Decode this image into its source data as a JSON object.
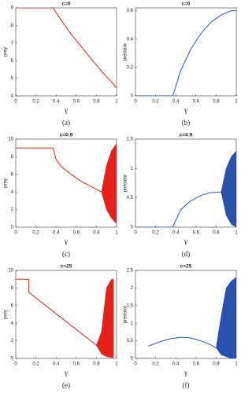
{
  "chart_data": [
    {
      "type": "line",
      "title": "c=0",
      "xlabel": "γ",
      "ylabel": "prey",
      "caption": "(a)",
      "xlim": [
        0,
        1
      ],
      "xticks": [
        0,
        0.2,
        0.4,
        0.6,
        0.8,
        1
      ],
      "ylim": [
        4,
        9
      ],
      "yticks": [
        4,
        5,
        6,
        7,
        8,
        9
      ],
      "series": [
        {
          "color": "#d8261e",
          "x": [
            0,
            0.37,
            0.45,
            0.55,
            0.65,
            0.75,
            0.85,
            0.95,
            1
          ],
          "values": [
            9,
            9,
            8.3,
            7.5,
            6.8,
            6.1,
            5.4,
            4.8,
            4.45
          ]
        }
      ]
    },
    {
      "type": "line",
      "title": "c=0",
      "xlabel": "γ",
      "ylabel": "predator",
      "caption": "(b)",
      "xlim": [
        0,
        1
      ],
      "xticks": [
        0,
        0.2,
        0.4,
        0.6,
        0.8,
        1
      ],
      "ylim": [
        0,
        0.62
      ],
      "yticks": [
        0,
        0.2,
        0.4,
        0.6
      ],
      "series": [
        {
          "color": "#2d55b5",
          "x": [
            0,
            0.37,
            0.45,
            0.55,
            0.65,
            0.75,
            0.85,
            0.95,
            1
          ],
          "values": [
            0,
            0,
            0.18,
            0.33,
            0.44,
            0.52,
            0.57,
            0.6,
            0.6
          ]
        }
      ]
    },
    {
      "type": "line",
      "title": "c=0.9",
      "xlabel": "γ",
      "ylabel": "prey",
      "caption": "(c)",
      "xlim": [
        0,
        1
      ],
      "xticks": [
        0,
        0.2,
        0.4,
        0.6,
        0.8,
        1
      ],
      "ylim": [
        0,
        10
      ],
      "yticks": [
        0,
        2,
        4,
        6,
        8,
        10
      ],
      "series": [
        {
          "color": "#d8261e",
          "x": [
            0,
            0.37,
            0.4,
            0.45,
            0.55,
            0.65,
            0.75,
            0.85
          ],
          "values": [
            9,
            9,
            7.7,
            6.9,
            6,
            5.2,
            4.6,
            4
          ]
        }
      ],
      "bands": [
        {
          "color": "#e8201a",
          "x": [
            0.85,
            0.9,
            0.95,
            1
          ],
          "lower": [
            4,
            2,
            1,
            0.4
          ],
          "upper": [
            4,
            7,
            8.7,
            9.5
          ]
        }
      ]
    },
    {
      "type": "line",
      "title": "c=0.9",
      "xlabel": "γ",
      "ylabel": "predator",
      "caption": "(d)",
      "xlim": [
        0,
        1
      ],
      "xticks": [
        0,
        0.2,
        0.4,
        0.6,
        0.8,
        1
      ],
      "ylim": [
        0,
        1.5
      ],
      "yticks": [
        0,
        0.5,
        1,
        1.5
      ],
      "series": [
        {
          "color": "#2d55b5",
          "x": [
            0,
            0.37,
            0.45,
            0.55,
            0.65,
            0.75,
            0.85
          ],
          "values": [
            0,
            0,
            0.3,
            0.45,
            0.54,
            0.59,
            0.6
          ]
        }
      ],
      "bands": [
        {
          "color": "#2a50b0",
          "x": [
            0.85,
            0.9,
            0.95,
            1
          ],
          "lower": [
            0.6,
            0.2,
            0.05,
            0
          ],
          "upper": [
            0.6,
            1,
            1.2,
            1.3
          ]
        }
      ]
    },
    {
      "type": "line",
      "title": "c=25",
      "xlabel": "γ",
      "ylabel": "prey",
      "caption": "(e)",
      "xlim": [
        0,
        1
      ],
      "xticks": [
        0,
        0.2,
        0.4,
        0.6,
        0.8,
        1
      ],
      "ylim": [
        0,
        10
      ],
      "yticks": [
        0,
        2,
        4,
        6,
        8,
        10
      ],
      "series": [
        {
          "color": "#d8261e",
          "x": [
            0,
            0.13,
            0.13,
            0.8
          ],
          "values": [
            9,
            9,
            7.5,
            1.5
          ]
        }
      ],
      "bands": [
        {
          "color": "#e8201a",
          "x": [
            0.8,
            0.85,
            0.9,
            0.95,
            0.97
          ],
          "lower": [
            1.5,
            0.5,
            0.2,
            0.1,
            0.1
          ],
          "upper": [
            1.5,
            3,
            8,
            9,
            9
          ]
        }
      ]
    },
    {
      "type": "line",
      "title": "c=25",
      "xlabel": "γ",
      "ylabel": "predator",
      "caption": "(f)",
      "xlim": [
        0,
        1
      ],
      "xticks": [
        0,
        0.2,
        0.4,
        0.6,
        0.8,
        1
      ],
      "ylim": [
        0,
        2.5
      ],
      "yticks": [
        0,
        0.5,
        1,
        1.5,
        2,
        2.5
      ],
      "series": [
        {
          "color": "#2d55b5",
          "x": [
            0,
            0.13,
            0.13,
            0.13,
            0.25,
            0.35,
            0.45,
            0.55,
            0.65,
            0.75,
            0.8
          ],
          "values": [
            0,
            0,
            null,
            0.35,
            0.48,
            0.56,
            0.6,
            0.58,
            0.5,
            0.38,
            0.3
          ]
        }
      ],
      "bands": [
        {
          "color": "#2a50b0",
          "x": [
            0.8,
            0.85,
            0.9,
            0.95,
            1
          ],
          "lower": [
            0.3,
            0.1,
            0.05,
            0,
            0
          ],
          "upper": [
            0.3,
            1.2,
            2,
            2.2,
            2.3
          ]
        }
      ]
    }
  ]
}
